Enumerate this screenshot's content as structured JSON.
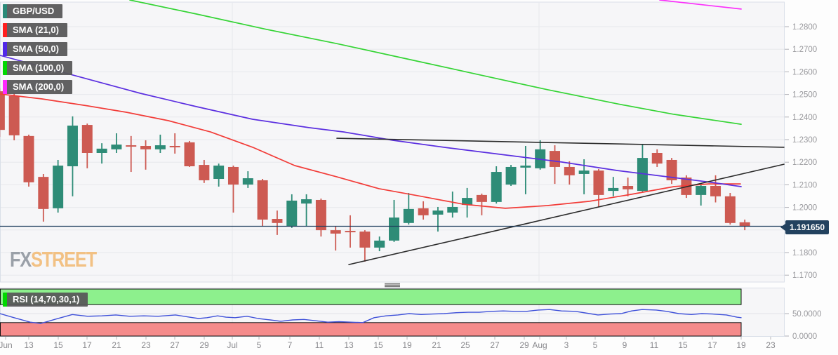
{
  "symbol_badge": {
    "label": "GBP/USD",
    "color": "#2a8a78"
  },
  "legend": {
    "items": [
      {
        "label": "SMA (21,0)",
        "color": "#ff2020"
      },
      {
        "label": "SMA (50,0)",
        "color": "#5128e8"
      },
      {
        "label": "SMA (100,0)",
        "color": "#00d800"
      },
      {
        "label": "SMA (200,0)",
        "color": "#ff28ff"
      }
    ]
  },
  "rsi_badge": {
    "label": "RSI (14,70,30,1)",
    "color": "#00d800"
  },
  "watermark": {
    "fx": "FX",
    "street": "STREET"
  },
  "price_badge": {
    "value": "1.191650",
    "color": "#23425f"
  },
  "chart_data": {
    "type": "candlestick",
    "instrument": "GBP/USD",
    "interval": "daily",
    "grid": true,
    "candle_colors": {
      "up": "#2e8c77",
      "down": "#cd5a52"
    },
    "y_axis": {
      "side": "right",
      "ticks": [
        [
          "1.2800",
          1.28
        ],
        [
          "1.2700",
          1.27
        ],
        [
          "1.2600",
          1.26
        ],
        [
          "1.2500",
          1.25
        ],
        [
          "1.2400",
          1.24
        ],
        [
          "1.2300",
          1.23
        ],
        [
          "1.2200",
          1.22
        ],
        [
          "1.2100",
          1.21
        ],
        [
          "1.2000",
          1.2
        ],
        [
          "1.1900",
          1.19
        ],
        [
          "1.1800",
          1.18
        ],
        [
          "1.1700",
          1.17
        ]
      ]
    },
    "x_axis": {
      "labels": [
        [
          "Jun",
          8
        ],
        [
          "13",
          41
        ],
        [
          "15",
          83
        ],
        [
          "17",
          124
        ],
        [
          "21",
          166
        ],
        [
          "23",
          208
        ],
        [
          "27",
          249
        ],
        [
          "29",
          291
        ],
        [
          "Jul",
          331
        ],
        [
          "5",
          369
        ],
        [
          "7",
          413
        ],
        [
          "11",
          455
        ],
        [
          "13",
          497
        ],
        [
          "15",
          539
        ],
        [
          "19",
          580
        ],
        [
          "21",
          622
        ],
        [
          "25",
          663
        ],
        [
          "27",
          705
        ],
        [
          "29",
          747
        ],
        [
          "Aug",
          769
        ],
        [
          "3",
          807
        ],
        [
          "5",
          848
        ],
        [
          "9",
          890
        ],
        [
          "11",
          932
        ],
        [
          "15",
          973
        ],
        [
          "17",
          1015
        ],
        [
          "19",
          1056
        ],
        [
          "23",
          1098
        ]
      ],
      "month_gridlines_x": [
        331,
        768
      ]
    },
    "candles": [
      [
        "Jun 9",
        1.2514,
        1.2527,
        1.2312,
        1.2343
      ],
      [
        "Jun 10",
        1.2493,
        1.2505,
        1.2297,
        1.2319
      ],
      [
        "Jun 13",
        1.2316,
        1.2322,
        1.2092,
        1.2111
      ],
      [
        "Jun 14",
        1.2135,
        1.2148,
        1.1937,
        1.1993
      ],
      [
        "Jun 15",
        1.1996,
        1.221,
        1.1977,
        1.2185
      ],
      [
        "Jun 16",
        1.2182,
        1.2403,
        1.2049,
        1.2362
      ],
      [
        "Jun 17",
        1.2365,
        1.2371,
        1.2173,
        1.2241
      ],
      [
        "Jun 20",
        1.2241,
        1.2284,
        1.2194,
        1.226
      ],
      [
        "Jun 21",
        1.2257,
        1.2328,
        1.2241,
        1.2278
      ],
      [
        "Jun 22",
        1.2275,
        1.2316,
        1.2157,
        1.2269
      ],
      [
        "Jun 23",
        1.2272,
        1.2297,
        1.2167,
        1.2257
      ],
      [
        "Jun 24",
        1.2257,
        1.2322,
        1.2241,
        1.2275
      ],
      [
        "Jun 27",
        1.2272,
        1.2328,
        1.2238,
        1.2266
      ],
      [
        "Jun 28",
        1.2288,
        1.2294,
        1.2179,
        1.2182
      ],
      [
        "Jun 29",
        1.2188,
        1.221,
        1.2108,
        1.212
      ],
      [
        "Jun 30",
        1.2126,
        1.2194,
        1.2092,
        1.2185
      ],
      [
        "Jul 1",
        1.2179,
        1.2185,
        1.1977,
        1.2101
      ],
      [
        "Jul 4",
        1.2101,
        1.216,
        1.2086,
        1.2129
      ],
      [
        "Jul 5",
        1.212,
        1.2126,
        1.1915,
        1.1946
      ],
      [
        "Jul 6",
        1.1949,
        1.1986,
        1.1878,
        1.1931
      ],
      [
        "Jul 7",
        1.1918,
        1.2058,
        1.1909,
        1.203
      ],
      [
        "Jul 8",
        1.2017,
        1.2058,
        1.1915,
        1.2036
      ],
      [
        "Jul 11",
        1.2033,
        1.2039,
        1.1871,
        1.1899
      ],
      [
        "Jul 12",
        1.1899,
        1.1915,
        1.1809,
        1.1884
      ],
      [
        "Jul 13",
        1.1896,
        1.1965,
        1.1822,
        1.189
      ],
      [
        "Jul 14",
        1.1893,
        1.1899,
        1.176,
        1.1822
      ],
      [
        "Jul 15",
        1.1822,
        1.1871,
        1.1806,
        1.1853
      ],
      [
        "Jul 18",
        1.1853,
        1.2033,
        1.1847,
        1.1955
      ],
      [
        "Jul 19",
        1.1931,
        1.2064,
        1.1924,
        1.1993
      ],
      [
        "Jul 20",
        1.1996,
        1.2027,
        1.1946,
        1.1965
      ],
      [
        "Jul 21",
        1.1968,
        1.2002,
        1.1893,
        1.1986
      ],
      [
        "Jul 22",
        1.1977,
        1.207,
        1.1955,
        1.2002
      ],
      [
        "Jul 25",
        1.2011,
        1.2086,
        1.1955,
        1.2042
      ],
      [
        "Jul 26",
        1.2055,
        1.2061,
        1.1965,
        1.2024
      ],
      [
        "Jul 27",
        1.2024,
        1.2182,
        1.2017,
        1.2157
      ],
      [
        "Jul 28",
        1.2101,
        1.2188,
        1.2095,
        1.2179
      ],
      [
        "Jul 29",
        1.2176,
        1.2272,
        1.2058,
        1.2185
      ],
      [
        "Aug 1",
        1.2173,
        1.2297,
        1.2167,
        1.2257
      ],
      [
        "Aug 2",
        1.225,
        1.2275,
        1.2104,
        1.2179
      ],
      [
        "Aug 3",
        1.2179,
        1.2204,
        1.2101,
        1.2142
      ],
      [
        "Aug 4",
        1.2148,
        1.2213,
        1.2058,
        1.2163
      ],
      [
        "Aug 5",
        1.2163,
        1.217,
        1.2002,
        1.2055
      ],
      [
        "Aug 8",
        1.2073,
        1.2135,
        1.2049,
        1.2086
      ],
      [
        "Aug 9",
        1.2095,
        1.2132,
        1.2049,
        1.208
      ],
      [
        "Aug 10",
        1.2073,
        1.2281,
        1.207,
        1.2219
      ],
      [
        "Aug 11",
        1.2241,
        1.2257,
        1.2179,
        1.2194
      ],
      [
        "Aug 12",
        1.221,
        1.2219,
        1.2104,
        1.212
      ],
      [
        "Aug 15",
        1.2132,
        1.2142,
        1.2042,
        1.2055
      ],
      [
        "Aug 16",
        1.2055,
        1.2104,
        1.2008,
        1.2095
      ],
      [
        "Aug 17",
        1.2095,
        1.2142,
        1.2022,
        1.2049
      ],
      [
        "Aug 18",
        1.2049,
        1.2064,
        1.1924,
        1.1931
      ],
      [
        "Aug 19",
        1.1934,
        1.1946,
        1.1899,
        1.19165
      ]
    ],
    "smas": [
      {
        "name": "SMA 21",
        "color": "#f23c38",
        "points": [
          [
            0,
            1.2502
          ],
          [
            60,
            1.248
          ],
          [
            120,
            1.2452
          ],
          [
            180,
            1.2421
          ],
          [
            240,
            1.2384
          ],
          [
            300,
            1.2334
          ],
          [
            360,
            1.2266
          ],
          [
            420,
            1.2185
          ],
          [
            480,
            1.2135
          ],
          [
            540,
            1.2083
          ],
          [
            600,
            1.2049
          ],
          [
            660,
            1.2014
          ],
          [
            720,
            1.1996
          ],
          [
            780,
            1.2008
          ],
          [
            840,
            1.2027
          ],
          [
            900,
            1.2058
          ],
          [
            960,
            1.2092
          ],
          [
            1010,
            1.2104
          ],
          [
            1055,
            1.2104
          ]
        ]
      },
      {
        "name": "SMA 50",
        "color": "#5b2fe0",
        "points": [
          [
            0,
            1.2673
          ],
          [
            100,
            1.2589
          ],
          [
            200,
            1.2505
          ],
          [
            280,
            1.2446
          ],
          [
            360,
            1.239
          ],
          [
            440,
            1.2353
          ],
          [
            490,
            1.2334
          ],
          [
            560,
            1.2297
          ],
          [
            640,
            1.2263
          ],
          [
            720,
            1.2232
          ],
          [
            800,
            1.2201
          ],
          [
            880,
            1.2163
          ],
          [
            960,
            1.2132
          ],
          [
            1020,
            1.2108
          ],
          [
            1056,
            1.2092
          ]
        ]
      },
      {
        "name": "SMA 100",
        "color": "#35d435",
        "points": [
          [
            185,
            1.2918
          ],
          [
            280,
            1.2856
          ],
          [
            380,
            1.2788
          ],
          [
            480,
            1.2725
          ],
          [
            580,
            1.2657
          ],
          [
            680,
            1.2589
          ],
          [
            780,
            1.2521
          ],
          [
            880,
            1.2458
          ],
          [
            960,
            1.2412
          ],
          [
            1056,
            1.2368
          ]
        ]
      },
      {
        "name": "SMA 200",
        "color": "#fb30fb",
        "points": [
          [
            940,
            1.2918
          ],
          [
            1056,
            1.2878
          ]
        ]
      }
    ],
    "trendlines": [
      {
        "name": "upper-resistance",
        "points": [
          [
            480,
            1.2306
          ],
          [
            1117,
            1.2266
          ]
        ]
      },
      {
        "name": "rising-support",
        "points": [
          [
            497,
            1.1747
          ],
          [
            1117,
            1.2191
          ]
        ]
      }
    ],
    "current_price": 1.19165,
    "current_price_label": "1.191650",
    "rsi": {
      "label": "RSI (14,70,30,1)",
      "upper_level": 70,
      "lower_level": 30,
      "line_color": "#3f51d9",
      "band_up_color": "#8df08d",
      "band_down_color": "#f58b8b",
      "axis_ticks": [
        [
          "50.0000",
          50
        ],
        [
          "0.0000",
          0
        ]
      ],
      "points": [
        [
          0,
          50
        ],
        [
          20,
          41
        ],
        [
          43,
          31
        ],
        [
          58,
          28
        ],
        [
          80,
          38
        ],
        [
          103,
          48
        ],
        [
          125,
          44
        ],
        [
          145,
          45
        ],
        [
          165,
          47
        ],
        [
          185,
          44
        ],
        [
          205,
          45
        ],
        [
          225,
          44
        ],
        [
          250,
          47
        ],
        [
          270,
          42
        ],
        [
          283,
          39
        ],
        [
          295,
          41
        ],
        [
          310,
          45
        ],
        [
          322,
          42
        ],
        [
          335,
          41
        ],
        [
          352,
          44
        ],
        [
          368,
          39
        ],
        [
          385,
          36
        ],
        [
          400,
          33
        ],
        [
          417,
          36
        ],
        [
          433,
          37
        ],
        [
          450,
          34
        ],
        [
          467,
          31
        ],
        [
          483,
          32
        ],
        [
          500,
          31
        ],
        [
          517,
          30
        ],
        [
          533,
          41
        ],
        [
          550,
          45
        ],
        [
          567,
          47
        ],
        [
          583,
          50
        ],
        [
          600,
          48
        ],
        [
          617,
          49
        ],
        [
          633,
          50
        ],
        [
          650,
          52
        ],
        [
          667,
          53
        ],
        [
          683,
          53
        ],
        [
          700,
          55
        ],
        [
          717,
          56
        ],
        [
          733,
          55
        ],
        [
          750,
          55
        ],
        [
          767,
          58
        ],
        [
          783,
          59
        ],
        [
          800,
          56
        ],
        [
          820,
          55
        ],
        [
          840,
          50
        ],
        [
          852,
          47
        ],
        [
          870,
          49
        ],
        [
          885,
          50
        ],
        [
          900,
          56
        ],
        [
          915,
          59
        ],
        [
          935,
          58
        ],
        [
          950,
          55
        ],
        [
          967,
          50
        ],
        [
          985,
          48
        ],
        [
          1000,
          50
        ],
        [
          1015,
          49
        ],
        [
          1035,
          47
        ],
        [
          1050,
          42
        ],
        [
          1056,
          41
        ]
      ]
    }
  }
}
